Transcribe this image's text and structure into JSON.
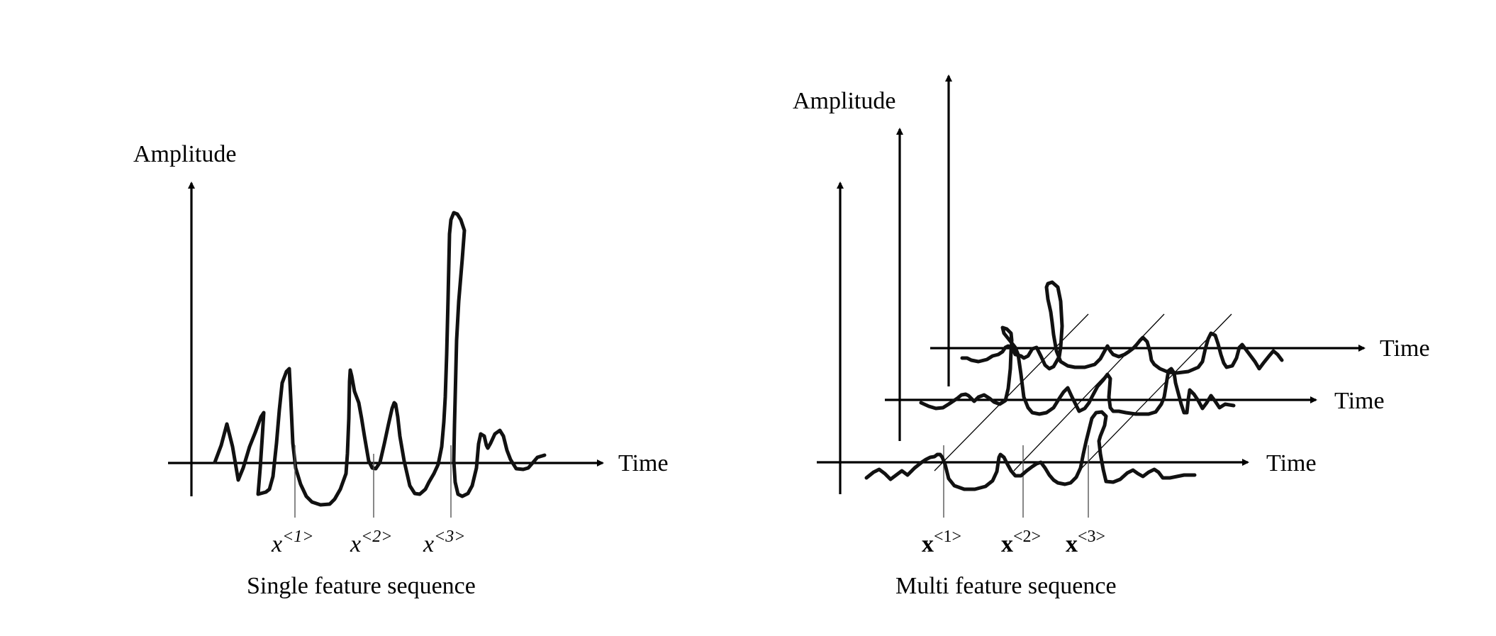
{
  "left_panel": {
    "y_label": "Amplitude",
    "x_label": "Time",
    "caption": "Single feature sequence",
    "markers": [
      {
        "var": "x",
        "sup": "<1>"
      },
      {
        "var": "x",
        "sup": "<2>"
      },
      {
        "var": "x",
        "sup": "<3>"
      }
    ]
  },
  "right_panel": {
    "y_label": "Amplitude",
    "x_labels": [
      "Time",
      "Time",
      "Time"
    ],
    "caption": "Multi feature sequence",
    "markers": [
      {
        "var": "x",
        "sup": "<1>"
      },
      {
        "var": "x",
        "sup": "<2>"
      },
      {
        "var": "x",
        "sup": "<3>"
      }
    ]
  },
  "icons": {
    "axis_arrow": "arrowhead"
  }
}
